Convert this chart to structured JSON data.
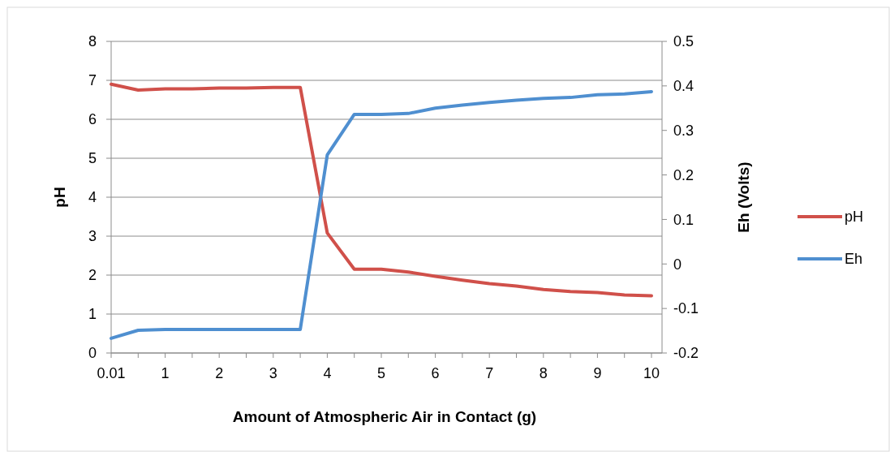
{
  "chart_data": {
    "type": "line",
    "xlabel": "Amount of Atmospheric Air in Contact (g)",
    "ylabel": "pH",
    "y2label": "Eh (Volts)",
    "categories": [
      "0.01",
      null,
      "1",
      null,
      "2",
      null,
      "3",
      null,
      "4",
      null,
      "5",
      null,
      "6",
      null,
      "7",
      null,
      "8",
      null,
      "9",
      null,
      "10"
    ],
    "series": [
      {
        "name": "pH",
        "color": "#d0504a",
        "values": [
          6.9,
          6.75,
          6.78,
          6.78,
          6.8,
          6.8,
          6.82,
          6.82,
          3.08,
          2.15,
          2.15,
          2.08,
          1.97,
          1.87,
          1.78,
          1.72,
          1.63,
          1.58,
          1.55,
          1.49,
          1.47
        ]
      },
      {
        "name": "Eh",
        "color": "#4f8fd0",
        "axis": "y2",
        "values": [
          -0.167,
          -0.149,
          -0.147,
          -0.147,
          -0.147,
          -0.147,
          -0.147,
          -0.147,
          0.245,
          0.336,
          0.336,
          0.338,
          0.35,
          0.357,
          0.363,
          0.368,
          0.372,
          0.374,
          0.38,
          0.382,
          0.387
        ]
      }
    ],
    "ylim": [
      0,
      8
    ],
    "yticks": [
      0,
      1,
      2,
      3,
      4,
      5,
      6,
      7,
      8
    ],
    "y2lim": [
      -0.2,
      0.5
    ],
    "y2ticks": [
      {
        "value": -0.2,
        "label": "-0.2"
      },
      {
        "value": -0.1,
        "label": "-0.1"
      },
      {
        "value": 0,
        "label": "0"
      },
      {
        "value": 0.1,
        "label": "0.1"
      },
      {
        "value": 0.2,
        "label": "0.2"
      },
      {
        "value": 0.3,
        "label": "0.3"
      },
      {
        "value": 0.4,
        "label": "0.4"
      },
      {
        "value": 0.5,
        "label": "0.5"
      }
    ],
    "grid": "y",
    "legend": "right",
    "marker": "none",
    "line_style": "solid"
  }
}
